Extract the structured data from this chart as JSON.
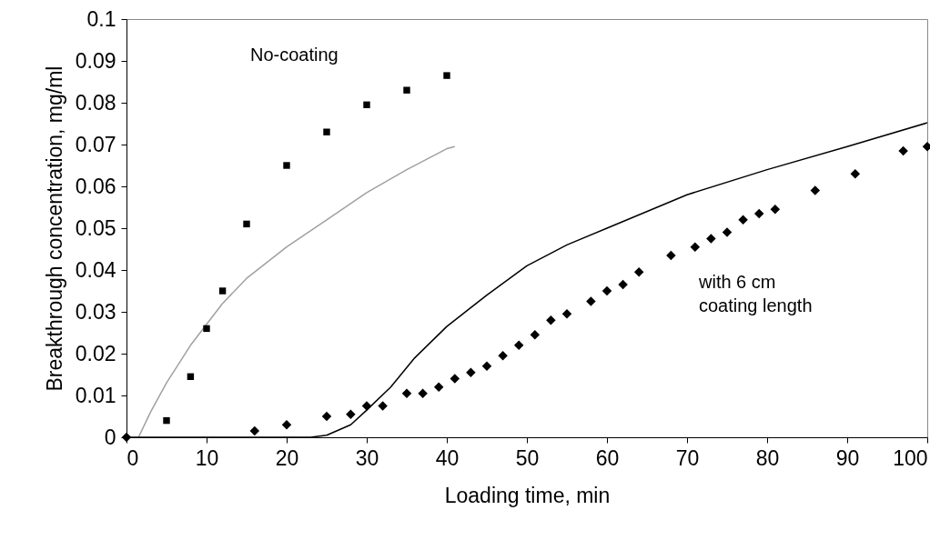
{
  "chart_data": {
    "type": "scatter",
    "xlabel": "Loading time, min",
    "ylabel": "Breakthrough concentration, mg/ml",
    "xlim": [
      0,
      100
    ],
    "ylim": [
      0,
      0.1
    ],
    "xticks": [
      0,
      10,
      20,
      30,
      40,
      50,
      60,
      70,
      80,
      90,
      100
    ],
    "yticks": [
      0,
      0.01,
      0.02,
      0.03,
      0.04,
      0.05,
      0.06,
      0.07,
      0.08,
      0.09,
      0.1
    ],
    "grid": false,
    "series": [
      {
        "type": "line",
        "color": "#a0a0a0",
        "x": [
          1.5,
          3,
          5,
          8,
          10,
          12,
          15,
          20,
          25,
          30,
          35,
          40,
          41
        ],
        "values": [
          0,
          0.006,
          0.013,
          0.022,
          0.027,
          0.032,
          0.038,
          0.0455,
          0.052,
          0.0585,
          0.064,
          0.069,
          0.0695
        ]
      },
      {
        "type": "line",
        "color": "#000000",
        "x": [
          0,
          23,
          25,
          28,
          30,
          33,
          36,
          40,
          45,
          50,
          55,
          60,
          70,
          80,
          90,
          100
        ],
        "values": [
          0,
          0,
          0.0005,
          0.003,
          0.0065,
          0.012,
          0.019,
          0.0265,
          0.034,
          0.041,
          0.046,
          0.05,
          0.058,
          0.064,
          0.0695,
          0.0752
        ]
      },
      {
        "marker": "square",
        "color": "#000000",
        "x": [
          5,
          8,
          10,
          12,
          15,
          20,
          25,
          30,
          35,
          40
        ],
        "values": [
          0.004,
          0.0145,
          0.026,
          0.035,
          0.051,
          0.065,
          0.073,
          0.0795,
          0.083,
          0.0865
        ]
      },
      {
        "marker": "diamond",
        "color": "#000000",
        "x": [
          0,
          16,
          20,
          25,
          28,
          30,
          32,
          35,
          37,
          39,
          41,
          43,
          45,
          47,
          49,
          51,
          53,
          55,
          58,
          60,
          62,
          64,
          68,
          71,
          73,
          75,
          77,
          79,
          81,
          86,
          91,
          97,
          100
        ],
        "values": [
          0,
          0.0015,
          0.003,
          0.005,
          0.0055,
          0.0075,
          0.0075,
          0.0105,
          0.0105,
          0.012,
          0.014,
          0.0155,
          0.017,
          0.0195,
          0.022,
          0.0245,
          0.028,
          0.0295,
          0.0325,
          0.035,
          0.0365,
          0.0395,
          0.0435,
          0.0455,
          0.0475,
          0.049,
          0.052,
          0.0535,
          0.0545,
          0.059,
          0.063,
          0.0685,
          0.0695
        ]
      }
    ],
    "annotations": [
      "No-coating",
      "with 6 cm\ncoating length"
    ]
  }
}
